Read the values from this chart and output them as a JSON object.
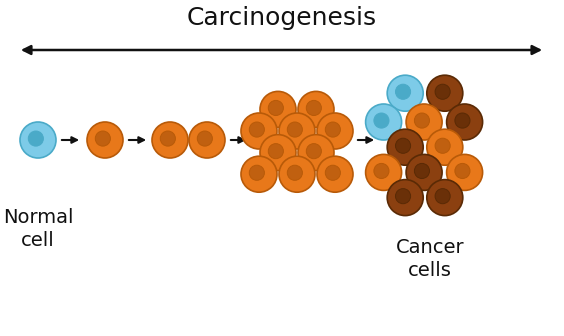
{
  "title": "Carcinogenesis",
  "label_normal": "Normal\ncell",
  "label_cancer": "Cancer\ncells",
  "bg_color": "#ffffff",
  "title_fontsize": 18,
  "label_fontsize": 14,
  "arrow_color": "#111111",
  "cell_colors": {
    "blue_fill": "#7dcbe8",
    "blue_edge": "#4aaac8",
    "blue_inner": "#4aaac8",
    "orange_fill": "#e8781a",
    "orange_edge": "#b85a08",
    "orange_inner": "#c06010",
    "dark_fill": "#8b4010",
    "dark_edge": "#5a2a05",
    "dark_inner": "#6a3008"
  },
  "fig_width": 5.64,
  "fig_height": 3.36,
  "dpi": 100
}
